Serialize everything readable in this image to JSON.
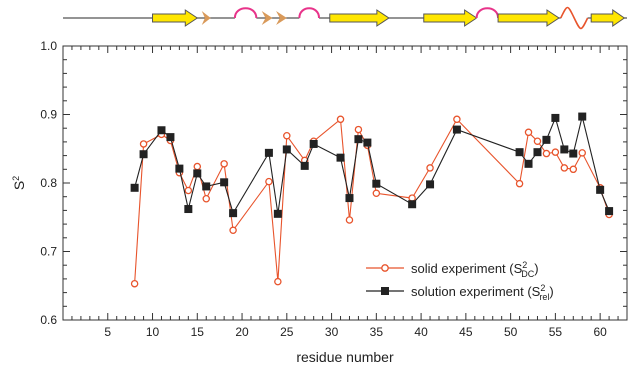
{
  "chart_data": {
    "type": "line",
    "xlabel": "residue number",
    "ylabel": "S",
    "ylabel_superscript": "2",
    "xlim": [
      0,
      63
    ],
    "ylim": [
      0.6,
      1.0
    ],
    "x_major_ticks": [
      5,
      10,
      15,
      20,
      25,
      30,
      35,
      40,
      45,
      50,
      55,
      60
    ],
    "x_tick_labels": [
      "5",
      "10",
      "15",
      "20",
      "25",
      "30",
      "35",
      "40",
      "45",
      "50",
      "55",
      "60"
    ],
    "y_major_ticks": [
      0.6,
      0.7,
      0.8,
      0.9,
      1.0
    ],
    "y_tick_labels": [
      "0.6",
      "0.7",
      "0.8",
      "0.9",
      "1.0"
    ],
    "grid": false,
    "legend_position": "bottom-right",
    "series": [
      {
        "name": "solid experiment (S",
        "name_sup": "2",
        "name_sub": "DC",
        "name_suffix": ")",
        "color": "#e8542c",
        "marker": "open-circle",
        "x": [
          8,
          9,
          11,
          12,
          13,
          14,
          15,
          16,
          18,
          19,
          23,
          24,
          25,
          27,
          28,
          31,
          32,
          33,
          34,
          35,
          39,
          41,
          44,
          51,
          52,
          53,
          54,
          55,
          56,
          57,
          58,
          60,
          61
        ],
        "y": [
          0.653,
          0.857,
          0.871,
          0.862,
          0.815,
          0.789,
          0.824,
          0.777,
          0.828,
          0.731,
          0.802,
          0.656,
          0.869,
          0.833,
          0.861,
          0.893,
          0.746,
          0.878,
          0.855,
          0.785,
          0.778,
          0.822,
          0.893,
          0.799,
          0.874,
          0.861,
          0.843,
          0.845,
          0.822,
          0.82,
          0.844,
          0.793,
          0.754
        ]
      },
      {
        "name": "solution experiment (S",
        "name_sup": "2",
        "name_sub": "rel",
        "name_suffix": ")",
        "color": "#222222",
        "marker": "filled-square",
        "x": [
          8,
          9,
          11,
          12,
          13,
          14,
          15,
          16,
          18,
          19,
          23,
          24,
          25,
          27,
          28,
          31,
          32,
          33,
          34,
          35,
          39,
          41,
          44,
          51,
          52,
          53,
          54,
          55,
          56,
          57,
          58,
          60,
          61
        ],
        "y": [
          0.793,
          0.842,
          0.877,
          0.867,
          0.821,
          0.762,
          0.814,
          0.795,
          0.801,
          0.756,
          0.844,
          0.755,
          0.849,
          0.825,
          0.857,
          0.837,
          0.778,
          0.864,
          0.859,
          0.799,
          0.769,
          0.798,
          0.878,
          0.845,
          0.828,
          0.845,
          0.863,
          0.895,
          0.849,
          0.843,
          0.897,
          0.79,
          0.759
        ]
      }
    ],
    "secondary_structure": [
      {
        "type": "strand",
        "start": 10,
        "end": 15
      },
      {
        "type": "turn",
        "start": 15.5,
        "end": 16.5
      },
      {
        "type": "loop",
        "start": 19.2,
        "end": 21.6
      },
      {
        "type": "turn",
        "start": 22.2,
        "end": 23.4
      },
      {
        "type": "turn",
        "start": 23.8,
        "end": 25
      },
      {
        "type": "loop",
        "start": 26.4,
        "end": 28.6
      },
      {
        "type": "strand",
        "start": 29.8,
        "end": 36.4
      },
      {
        "type": "strand",
        "start": 40.3,
        "end": 46.2
      },
      {
        "type": "loop",
        "start": 46.2,
        "end": 48.6
      },
      {
        "type": "strand",
        "start": 48.6,
        "end": 55.4
      },
      {
        "type": "wave",
        "start": 55.6,
        "end": 58.6
      },
      {
        "type": "strand",
        "start": 59,
        "end": 62.7
      }
    ],
    "colors": {
      "strand_fill": "#ffe600",
      "strand_stroke": "#555555",
      "turn_fill": "#d99a5a",
      "loop_stroke": "#e8338a",
      "wave_stroke": "#e8542c"
    }
  }
}
